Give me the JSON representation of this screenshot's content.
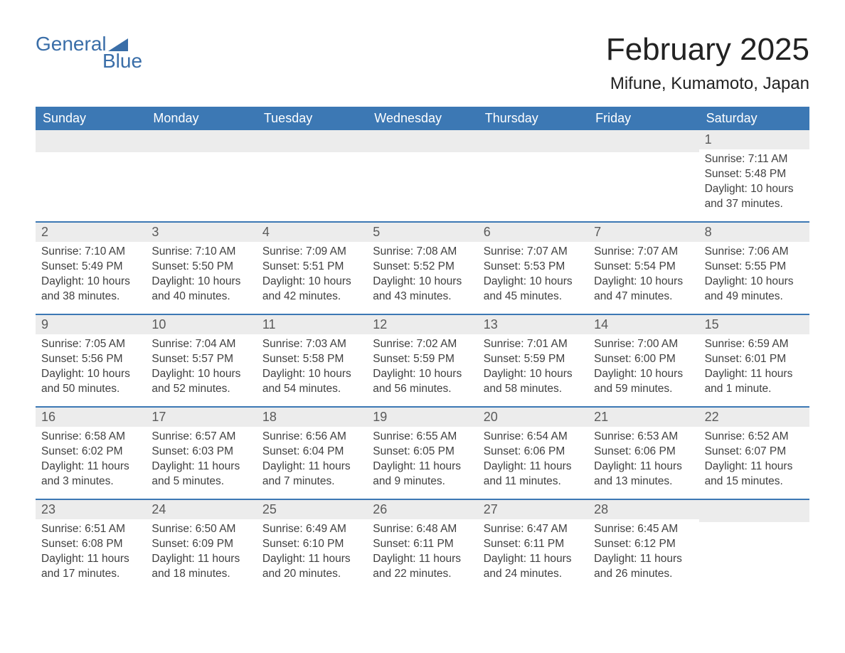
{
  "logo": {
    "word1": "General",
    "word2": "Blue"
  },
  "title": "February 2025",
  "location": "Mifune, Kumamoto, Japan",
  "colors": {
    "brand_blue": "#3c78b4",
    "logo_blue": "#3a6ea8",
    "row_gray": "#ececec",
    "text_dark": "#333333",
    "text_body": "#404040",
    "daynum_gray": "#5a5a5a",
    "background": "#ffffff"
  },
  "typography": {
    "title_fontsize": 44,
    "location_fontsize": 24,
    "dow_fontsize": 18,
    "daynum_fontsize": 18,
    "body_fontsize": 15.5,
    "logo_fontsize": 28
  },
  "daysOfWeek": [
    "Sunday",
    "Monday",
    "Tuesday",
    "Wednesday",
    "Thursday",
    "Friday",
    "Saturday"
  ],
  "weeks": [
    [
      {
        "n": "",
        "lines": []
      },
      {
        "n": "",
        "lines": []
      },
      {
        "n": "",
        "lines": []
      },
      {
        "n": "",
        "lines": []
      },
      {
        "n": "",
        "lines": []
      },
      {
        "n": "",
        "lines": []
      },
      {
        "n": "1",
        "lines": [
          "Sunrise: 7:11 AM",
          "Sunset: 5:48 PM",
          "Daylight: 10 hours and 37 minutes."
        ]
      }
    ],
    [
      {
        "n": "2",
        "lines": [
          "Sunrise: 7:10 AM",
          "Sunset: 5:49 PM",
          "Daylight: 10 hours and 38 minutes."
        ]
      },
      {
        "n": "3",
        "lines": [
          "Sunrise: 7:10 AM",
          "Sunset: 5:50 PM",
          "Daylight: 10 hours and 40 minutes."
        ]
      },
      {
        "n": "4",
        "lines": [
          "Sunrise: 7:09 AM",
          "Sunset: 5:51 PM",
          "Daylight: 10 hours and 42 minutes."
        ]
      },
      {
        "n": "5",
        "lines": [
          "Sunrise: 7:08 AM",
          "Sunset: 5:52 PM",
          "Daylight: 10 hours and 43 minutes."
        ]
      },
      {
        "n": "6",
        "lines": [
          "Sunrise: 7:07 AM",
          "Sunset: 5:53 PM",
          "Daylight: 10 hours and 45 minutes."
        ]
      },
      {
        "n": "7",
        "lines": [
          "Sunrise: 7:07 AM",
          "Sunset: 5:54 PM",
          "Daylight: 10 hours and 47 minutes."
        ]
      },
      {
        "n": "8",
        "lines": [
          "Sunrise: 7:06 AM",
          "Sunset: 5:55 PM",
          "Daylight: 10 hours and 49 minutes."
        ]
      }
    ],
    [
      {
        "n": "9",
        "lines": [
          "Sunrise: 7:05 AM",
          "Sunset: 5:56 PM",
          "Daylight: 10 hours and 50 minutes."
        ]
      },
      {
        "n": "10",
        "lines": [
          "Sunrise: 7:04 AM",
          "Sunset: 5:57 PM",
          "Daylight: 10 hours and 52 minutes."
        ]
      },
      {
        "n": "11",
        "lines": [
          "Sunrise: 7:03 AM",
          "Sunset: 5:58 PM",
          "Daylight: 10 hours and 54 minutes."
        ]
      },
      {
        "n": "12",
        "lines": [
          "Sunrise: 7:02 AM",
          "Sunset: 5:59 PM",
          "Daylight: 10 hours and 56 minutes."
        ]
      },
      {
        "n": "13",
        "lines": [
          "Sunrise: 7:01 AM",
          "Sunset: 5:59 PM",
          "Daylight: 10 hours and 58 minutes."
        ]
      },
      {
        "n": "14",
        "lines": [
          "Sunrise: 7:00 AM",
          "Sunset: 6:00 PM",
          "Daylight: 10 hours and 59 minutes."
        ]
      },
      {
        "n": "15",
        "lines": [
          "Sunrise: 6:59 AM",
          "Sunset: 6:01 PM",
          "Daylight: 11 hours and 1 minute."
        ]
      }
    ],
    [
      {
        "n": "16",
        "lines": [
          "Sunrise: 6:58 AM",
          "Sunset: 6:02 PM",
          "Daylight: 11 hours and 3 minutes."
        ]
      },
      {
        "n": "17",
        "lines": [
          "Sunrise: 6:57 AM",
          "Sunset: 6:03 PM",
          "Daylight: 11 hours and 5 minutes."
        ]
      },
      {
        "n": "18",
        "lines": [
          "Sunrise: 6:56 AM",
          "Sunset: 6:04 PM",
          "Daylight: 11 hours and 7 minutes."
        ]
      },
      {
        "n": "19",
        "lines": [
          "Sunrise: 6:55 AM",
          "Sunset: 6:05 PM",
          "Daylight: 11 hours and 9 minutes."
        ]
      },
      {
        "n": "20",
        "lines": [
          "Sunrise: 6:54 AM",
          "Sunset: 6:06 PM",
          "Daylight: 11 hours and 11 minutes."
        ]
      },
      {
        "n": "21",
        "lines": [
          "Sunrise: 6:53 AM",
          "Sunset: 6:06 PM",
          "Daylight: 11 hours and 13 minutes."
        ]
      },
      {
        "n": "22",
        "lines": [
          "Sunrise: 6:52 AM",
          "Sunset: 6:07 PM",
          "Daylight: 11 hours and 15 minutes."
        ]
      }
    ],
    [
      {
        "n": "23",
        "lines": [
          "Sunrise: 6:51 AM",
          "Sunset: 6:08 PM",
          "Daylight: 11 hours and 17 minutes."
        ]
      },
      {
        "n": "24",
        "lines": [
          "Sunrise: 6:50 AM",
          "Sunset: 6:09 PM",
          "Daylight: 11 hours and 18 minutes."
        ]
      },
      {
        "n": "25",
        "lines": [
          "Sunrise: 6:49 AM",
          "Sunset: 6:10 PM",
          "Daylight: 11 hours and 20 minutes."
        ]
      },
      {
        "n": "26",
        "lines": [
          "Sunrise: 6:48 AM",
          "Sunset: 6:11 PM",
          "Daylight: 11 hours and 22 minutes."
        ]
      },
      {
        "n": "27",
        "lines": [
          "Sunrise: 6:47 AM",
          "Sunset: 6:11 PM",
          "Daylight: 11 hours and 24 minutes."
        ]
      },
      {
        "n": "28",
        "lines": [
          "Sunrise: 6:45 AM",
          "Sunset: 6:12 PM",
          "Daylight: 11 hours and 26 minutes."
        ]
      },
      {
        "n": "",
        "lines": []
      }
    ]
  ]
}
